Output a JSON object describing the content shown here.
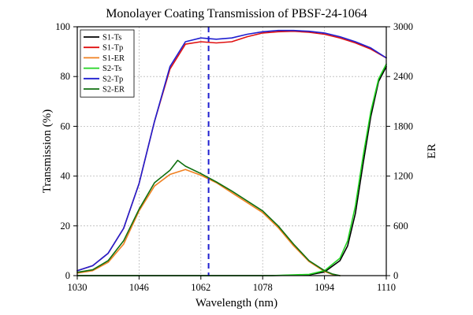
{
  "chart_data": {
    "type": "line",
    "title": "Monolayer Coating Transmission of PBSF-24-1064",
    "xlabel": "Wavelength (nm)",
    "ylabel": "Transmission (%)",
    "y2label": "ER",
    "xlim": [
      1030,
      1110
    ],
    "ylim": [
      0,
      100
    ],
    "y2lim": [
      0,
      3000
    ],
    "xticks": [
      1030,
      1046,
      1062,
      1078,
      1094,
      1110
    ],
    "yticks": [
      0,
      20,
      40,
      60,
      80,
      100
    ],
    "y2ticks": [
      0,
      600,
      1200,
      1800,
      2400,
      3000
    ],
    "grid": true,
    "legend_position": "top-left",
    "reference_line": {
      "x": 1064,
      "style": "dashed",
      "color": "#1f1fd0"
    },
    "series": [
      {
        "name": "S1-Ts",
        "color": "#000000",
        "axis": "left",
        "x": [
          1030,
          1040,
          1050,
          1060,
          1070,
          1080,
          1090,
          1094,
          1098,
          1100,
          1102,
          1104,
          1106,
          1108,
          1110
        ],
        "y": [
          0,
          0,
          0,
          0,
          0,
          0,
          0.3,
          1.5,
          6,
          12,
          25,
          45,
          64,
          78,
          84
        ]
      },
      {
        "name": "S1-Tp",
        "color": "#e01010",
        "axis": "left",
        "x": [
          1030,
          1034,
          1038,
          1042,
          1046,
          1050,
          1054,
          1058,
          1062,
          1066,
          1070,
          1074,
          1078,
          1082,
          1086,
          1090,
          1094,
          1098,
          1102,
          1106,
          1110
        ],
        "y": [
          2,
          4,
          9,
          19,
          37,
          62,
          83,
          93,
          94,
          93.5,
          94,
          96,
          97.5,
          98,
          98.2,
          97.8,
          97,
          95.5,
          93.5,
          91,
          87.5
        ]
      },
      {
        "name": "S1-ER",
        "color": "#f08020",
        "axis": "right",
        "x": [
          1030,
          1034,
          1038,
          1042,
          1046,
          1050,
          1054,
          1058,
          1062,
          1066,
          1070,
          1074,
          1078,
          1082,
          1086,
          1090,
          1094,
          1096,
          1098
        ],
        "y": [
          30,
          60,
          160,
          380,
          780,
          1080,
          1220,
          1280,
          1210,
          1120,
          1000,
          880,
          760,
          580,
          360,
          170,
          50,
          15,
          0
        ]
      },
      {
        "name": "S2-Ts",
        "color": "#21d421",
        "axis": "left",
        "x": [
          1030,
          1040,
          1050,
          1060,
          1070,
          1080,
          1090,
          1094,
          1098,
          1100,
          1102,
          1104,
          1106,
          1108,
          1110
        ],
        "y": [
          0,
          0,
          0,
          0,
          0,
          0,
          0.5,
          2,
          7,
          14,
          28,
          48,
          66,
          79,
          85
        ]
      },
      {
        "name": "S2-Tp",
        "color": "#1f1fd0",
        "axis": "left",
        "x": [
          1030,
          1034,
          1038,
          1042,
          1046,
          1050,
          1054,
          1058,
          1062,
          1066,
          1070,
          1074,
          1078,
          1082,
          1086,
          1090,
          1094,
          1098,
          1102,
          1106,
          1110
        ],
        "y": [
          2,
          4,
          9,
          19,
          37,
          62,
          84,
          94,
          95.5,
          95,
          95.5,
          97,
          98,
          98.5,
          98.5,
          98.2,
          97.5,
          96,
          94,
          91.5,
          87.5
        ]
      },
      {
        "name": "S2-ER",
        "color": "#0f6f0f",
        "axis": "right",
        "x": [
          1030,
          1034,
          1038,
          1042,
          1046,
          1050,
          1054,
          1056,
          1058,
          1062,
          1066,
          1070,
          1074,
          1078,
          1082,
          1086,
          1090,
          1094,
          1096,
          1098
        ],
        "y": [
          40,
          70,
          180,
          420,
          800,
          1120,
          1270,
          1390,
          1320,
          1230,
          1130,
          1020,
          900,
          780,
          600,
          380,
          180,
          60,
          20,
          0
        ]
      }
    ]
  }
}
